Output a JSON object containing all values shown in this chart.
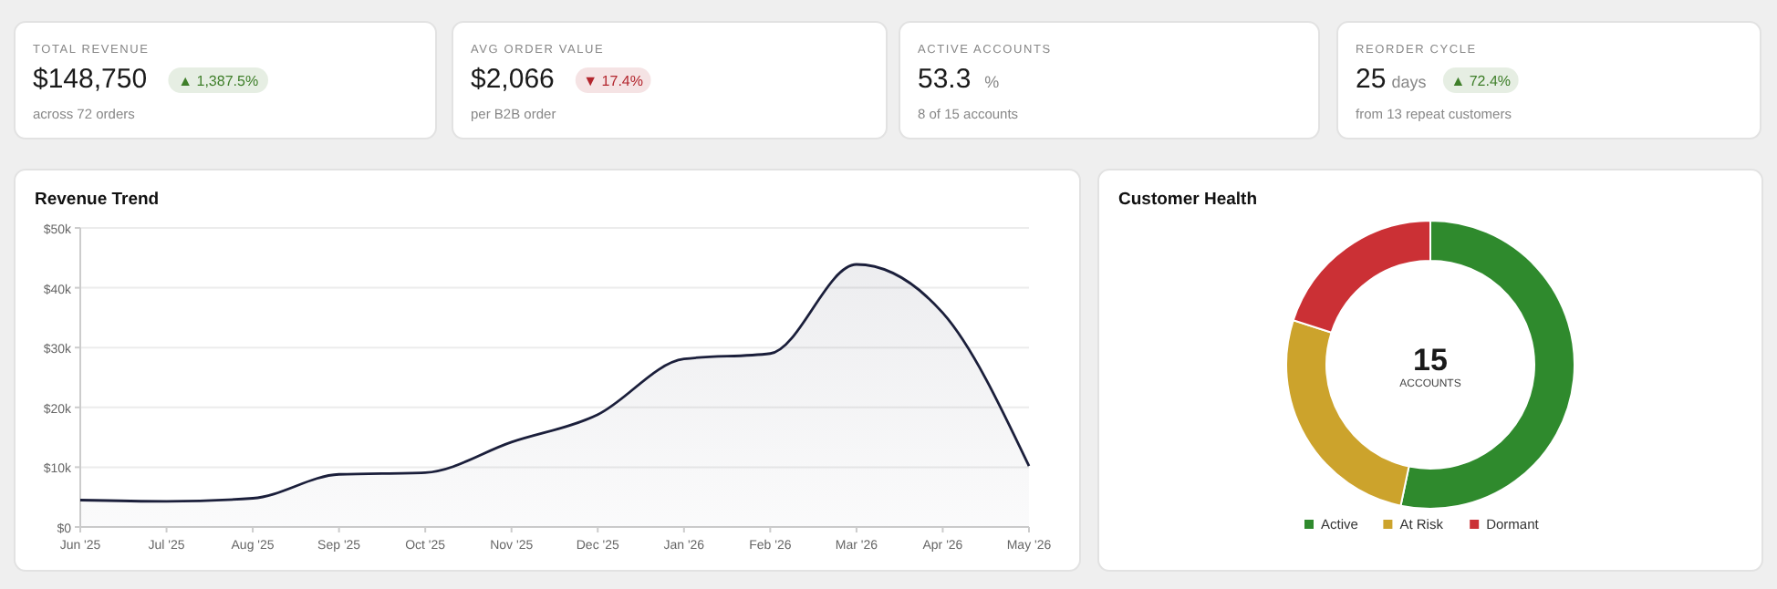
{
  "chart_data": [
    {
      "type": "other",
      "title": "TOTAL REVENUE",
      "annotations": [
        "$148,750",
        null,
        "▲ 1,387.5%",
        "across 72 orders"
      ],
      "color": "#3f7f2a"
    },
    {
      "type": "other",
      "title": "AVG ORDER VALUE",
      "annotations": [
        "$2,066",
        null,
        "▼ 17.4%",
        "per B2B order"
      ],
      "color": "#b3262e"
    },
    {
      "type": "other",
      "title": "ACTIVE ACCOUNTS",
      "annotations": [
        "53.3",
        "%",
        null,
        "8 of 15 accounts"
      ]
    },
    {
      "type": "other",
      "title": "REORDER CYCLE",
      "annotations": [
        "25",
        "days",
        "▲ 72.4%",
        "from 13 repeat customers"
      ],
      "color": "#3f7f2a"
    },
    {
      "type": "area",
      "title": "Revenue Trend",
      "categories": [
        "Jun '25",
        "Jul '25",
        "Aug '25",
        "Sep '25",
        "Oct '25",
        "Nov '25",
        "Dec '25",
        "Jan '26",
        "Feb '26",
        "Mar '26",
        "Apr '26",
        "May '26"
      ],
      "series": [
        {
          "color": "#1b1f3b",
          "values": [
            4500,
            4300,
            4800,
            8800,
            9100,
            14200,
            18800,
            28100,
            29000,
            43900,
            35800,
            10200
          ]
        }
      ],
      "ylim": [
        0,
        50000
      ],
      "yticks": [
        {
          "value": 0,
          "label": "$0"
        },
        {
          "value": 10000,
          "label": "$10k"
        },
        {
          "value": 20000,
          "label": "$20k"
        },
        {
          "value": 30000,
          "label": "$30k"
        },
        {
          "value": 40000,
          "label": "$40k"
        },
        {
          "value": 50000,
          "label": "$50k"
        }
      ],
      "grid": "y",
      "marker": "none"
    },
    {
      "type": "donut",
      "title": "Customer Health",
      "categories": [
        "Active",
        "At Risk",
        "Dormant"
      ],
      "values": [
        53.3,
        26.7,
        20
      ],
      "colors": [
        "#2f8a2d",
        "#cca32c",
        "#cb3035"
      ],
      "legend": "bottom",
      "annotations": [
        "15",
        "ACCOUNTS"
      ]
    }
  ]
}
